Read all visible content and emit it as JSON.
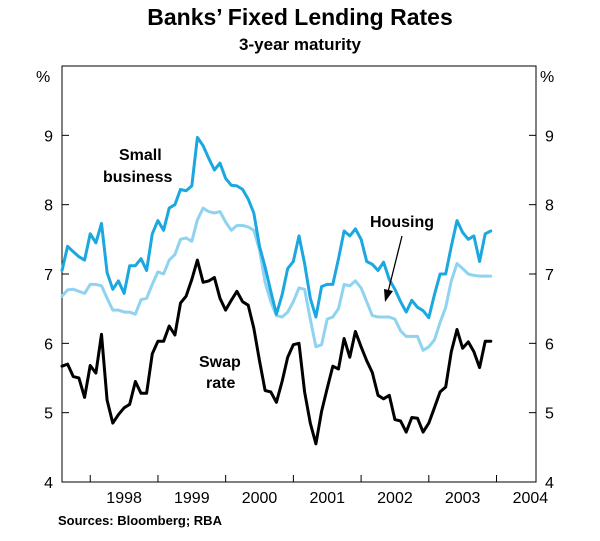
{
  "chart_data": {
    "type": "line",
    "title": "Banks’ Fixed Lending Rates",
    "subtitle": "3-year maturity",
    "y_unit": "%",
    "ylim": [
      4,
      10
    ],
    "y_ticks": [
      4,
      5,
      6,
      7,
      8,
      9
    ],
    "x_start": 1997.583,
    "x_end": 2004.583,
    "x_tick_labels": [
      "1998",
      "1999",
      "2000",
      "2001",
      "2002",
      "2003",
      "2004"
    ],
    "grid": false,
    "source": "Sources: Bloomberg; RBA",
    "annotations": {
      "small_business": [
        "Small",
        "business"
      ],
      "housing": "Housing",
      "swap": [
        "Swap",
        "rate"
      ]
    },
    "colors": {
      "small_business": "#1ba7e0",
      "housing": "#8fd3f0",
      "swap": "#000000"
    },
    "series": [
      {
        "key": "small_business",
        "start": 1997.583,
        "step": 0.08333,
        "values": [
          7.05,
          7.4,
          7.32,
          7.25,
          7.2,
          7.58,
          7.45,
          7.73,
          7.02,
          6.78,
          6.9,
          6.72,
          7.12,
          7.12,
          7.22,
          7.05,
          7.58,
          7.77,
          7.63,
          7.95,
          8.0,
          8.22,
          8.2,
          8.27,
          8.97,
          8.85,
          8.67,
          8.5,
          8.6,
          8.38,
          8.28,
          8.27,
          8.22,
          8.08,
          7.88,
          7.4,
          7.1,
          6.75,
          6.42,
          6.7,
          7.08,
          7.18,
          7.55,
          7.15,
          6.65,
          6.38,
          6.82,
          6.85,
          6.85,
          7.22,
          7.62,
          7.55,
          7.65,
          7.5,
          7.18,
          7.14,
          7.05,
          7.17,
          6.92,
          6.78,
          6.6,
          6.45,
          6.62,
          6.52,
          6.47,
          6.37,
          6.7,
          7.0,
          7.0,
          7.4,
          7.77,
          7.6,
          7.5,
          7.55,
          7.18,
          7.58,
          7.62
        ]
      },
      {
        "key": "housing",
        "start": 1997.583,
        "step": 0.08333,
        "values": [
          6.68,
          6.77,
          6.78,
          6.75,
          6.72,
          6.85,
          6.85,
          6.83,
          6.65,
          6.48,
          6.48,
          6.45,
          6.45,
          6.42,
          6.63,
          6.65,
          6.85,
          7.03,
          7.0,
          7.2,
          7.28,
          7.5,
          7.52,
          7.47,
          7.78,
          7.95,
          7.9,
          7.88,
          7.9,
          7.75,
          7.63,
          7.7,
          7.7,
          7.68,
          7.63,
          7.35,
          6.88,
          6.6,
          6.4,
          6.38,
          6.45,
          6.6,
          6.8,
          6.78,
          6.35,
          5.95,
          5.98,
          6.35,
          6.38,
          6.5,
          6.85,
          6.83,
          6.9,
          6.8,
          6.6,
          6.4,
          6.38,
          6.38,
          6.38,
          6.35,
          6.18,
          6.1,
          6.1,
          6.1,
          5.9,
          5.95,
          6.05,
          6.3,
          6.52,
          6.9,
          7.15,
          7.08,
          7.0,
          6.98,
          6.97,
          6.97,
          6.97
        ]
      },
      {
        "key": "swap",
        "start": 1997.583,
        "step": 0.08333,
        "values": [
          5.67,
          5.7,
          5.52,
          5.5,
          5.22,
          5.68,
          5.57,
          6.13,
          5.18,
          4.85,
          4.97,
          5.07,
          5.12,
          5.45,
          5.28,
          5.28,
          5.85,
          6.03,
          6.03,
          6.25,
          6.12,
          6.58,
          6.68,
          6.92,
          7.2,
          6.88,
          6.9,
          6.95,
          6.65,
          6.48,
          6.62,
          6.75,
          6.6,
          6.55,
          6.22,
          5.75,
          5.32,
          5.3,
          5.15,
          5.45,
          5.8,
          5.98,
          6.0,
          5.3,
          4.85,
          4.55,
          5.02,
          5.35,
          5.67,
          5.63,
          6.07,
          5.8,
          6.17,
          5.95,
          5.75,
          5.58,
          5.25,
          5.2,
          5.25,
          4.9,
          4.88,
          4.72,
          4.93,
          4.92,
          4.72,
          4.85,
          5.07,
          5.3,
          5.37,
          5.88,
          6.2,
          5.93,
          6.02,
          5.88,
          5.65,
          6.03,
          6.03
        ]
      }
    ]
  }
}
